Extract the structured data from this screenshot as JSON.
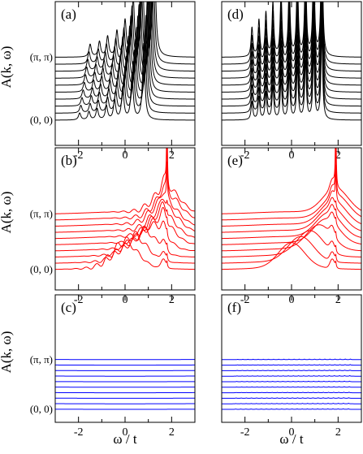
{
  "figure": {
    "colors": {
      "a": "#000000",
      "b": "#ff0000",
      "c": "#0000ff"
    }
  },
  "chart_data": [
    {
      "panel": "(a)",
      "type": "line",
      "color": "#000000",
      "xlim": [
        -3,
        3
      ],
      "xticks": [
        -2,
        0,
        2
      ],
      "xtick_labels": [
        "-2",
        "0",
        "2"
      ],
      "ylabel": "A(k, ω)",
      "xlabel": "",
      "k_labels": {
        "first": "(0, 0)",
        "last": "(π, π)"
      },
      "n_curves": 10,
      "stacked": true,
      "peaks_top_curve_omega": [
        -1.5,
        -1.1,
        -0.75,
        -0.35,
        0.0,
        0.35,
        0.75,
        1.25
      ],
      "peaks_top_curve_height": [
        0.5,
        0.6,
        0.8,
        1.0,
        1.4,
        2.3,
        3.3,
        5.5
      ],
      "shift_per_curve": 0.05
    },
    {
      "panel": "(b)",
      "type": "line",
      "color": "#ff0000",
      "xlim": [
        -3,
        3
      ],
      "xticks": [
        -2,
        0,
        2
      ],
      "xtick_labels": [
        "-2",
        "0",
        "2"
      ],
      "ylabel": "A(k, ω)",
      "xlabel": "",
      "k_labels": {
        "first": "(0, 0)",
        "last": "(π, π)"
      },
      "n_curves": 10,
      "stacked": true,
      "broad_peak_omega_by_curve": [
        0.0,
        0.4,
        0.8,
        1.2,
        1.5,
        1.6,
        1.7,
        1.7,
        1.8,
        1.8
      ],
      "sharp_peak_omega": 1.8
    },
    {
      "panel": "(c)",
      "type": "line",
      "color": "#0000ff",
      "xlim": [
        -3,
        3
      ],
      "xticks": [
        -2,
        0,
        2
      ],
      "xtick_labels": [
        "-2",
        "0",
        "2"
      ],
      "ylabel": "A(k, ω)",
      "xlabel": "ω / t",
      "k_labels": {
        "first": "(0, 0)",
        "last": "(π, π)"
      },
      "n_curves": 10,
      "stacked": true,
      "profile": "flat"
    },
    {
      "panel": "(d)",
      "type": "line",
      "color": "#000000",
      "xlim": [
        -3,
        3
      ],
      "xticks": [
        -2,
        0,
        2
      ],
      "xtick_labels": [
        "-2",
        "0",
        "2"
      ],
      "ylabel": "",
      "xlabel": "",
      "n_curves": 10,
      "stacked": true,
      "peaks_top_curve_omega": [
        -1.7,
        -1.4,
        -1.1,
        -0.8,
        -0.45,
        -0.1,
        0.25,
        0.6,
        0.95,
        1.3
      ],
      "peaks_top_curve_height": [
        1.2,
        1.5,
        1.8,
        2.2,
        2.6,
        3.0,
        3.4,
        3.8,
        4.2,
        5.5
      ]
    },
    {
      "panel": "(e)",
      "type": "line",
      "color": "#ff0000",
      "xlim": [
        -3,
        3
      ],
      "xticks": [
        -2,
        0,
        2
      ],
      "xtick_labels": [
        "-2",
        "0",
        "2"
      ],
      "ylabel": "",
      "xlabel": "",
      "n_curves": 10,
      "stacked": true,
      "broad_peak_omega_by_curve": [
        0.0,
        0.4,
        0.8,
        1.2,
        1.5,
        1.6,
        1.7,
        1.8,
        1.9,
        1.9
      ],
      "sharp_peak_omega": 1.9
    },
    {
      "panel": "(f)",
      "type": "line",
      "color": "#0000ff",
      "xlim": [
        -3,
        3
      ],
      "xticks": [
        -2,
        0,
        2
      ],
      "xtick_labels": [
        "-2",
        "0",
        "2"
      ],
      "ylabel": "",
      "xlabel": "ω  / t",
      "n_curves": 10,
      "stacked": true,
      "comb_spacing": 0.22,
      "comb_range": [
        -2.4,
        2.6
      ]
    }
  ]
}
